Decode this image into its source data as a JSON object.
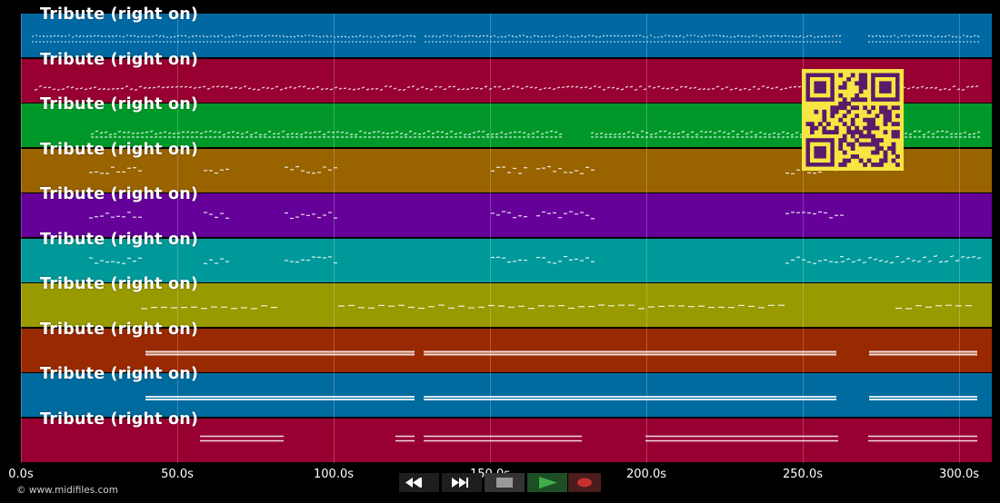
{
  "tracks": [
    {
      "title": "Tribute (right on)",
      "color": "#0069a3",
      "style": "dense-dots"
    },
    {
      "title": "Tribute (right on)",
      "color": "#980032",
      "style": "dense-notes"
    },
    {
      "title": "Tribute (right on)",
      "color": "#009929",
      "style": "dense-notes"
    },
    {
      "title": "Tribute (right on)",
      "color": "#996300",
      "style": "sparse"
    },
    {
      "title": "Tribute (right on)",
      "color": "#650099",
      "style": "sparse"
    },
    {
      "title": "Tribute (right on)",
      "color": "#009999",
      "style": "sparse"
    },
    {
      "title": "Tribute (right on)",
      "color": "#999900",
      "style": "dashes"
    },
    {
      "title": "Tribute (right on)",
      "color": "#992900",
      "style": "double-lines"
    },
    {
      "title": "Tribute (right on)",
      "color": "#006b9e",
      "style": "double-lines"
    },
    {
      "title": "Tribute (right on)",
      "color": "#990032",
      "style": "long-lines"
    }
  ],
  "timeline": {
    "ticks": [
      "0.0s",
      "50.0s",
      "100.0s",
      "150.0s",
      "200.0s",
      "250.0s",
      "300.0s"
    ],
    "max_seconds": 310
  },
  "controls": {
    "rewind": "rewind-icon",
    "fast_forward": "fast-forward-icon",
    "stop": "stop-icon",
    "play": "play-icon",
    "record": "record-icon",
    "play_color": "#3fae49",
    "record_color": "#c83030"
  },
  "copyright": "© www.midifiles.com",
  "qr_colors": {
    "fg": "#5a1a6b",
    "bg": "#f5e642"
  }
}
